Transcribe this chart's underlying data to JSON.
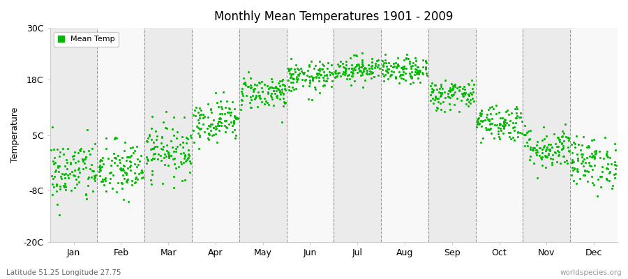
{
  "title": "Monthly Mean Temperatures 1901 - 2009",
  "ylabel": "Temperature",
  "ylim": [
    -20,
    30
  ],
  "yticks": [
    -20,
    -8,
    5,
    18,
    30
  ],
  "ytick_labels": [
    "-20C",
    "-8C",
    "5C",
    "18C",
    "30C"
  ],
  "months": [
    "Jan",
    "Feb",
    "Mar",
    "Apr",
    "May",
    "Jun",
    "Jul",
    "Aug",
    "Sep",
    "Oct",
    "Nov",
    "Dec"
  ],
  "dot_color": "#00bb00",
  "background_gray": "#ebebeb",
  "background_white": "#f8f8f8",
  "legend_label": "Mean Temp",
  "footnote_left": "Latitude 51.25 Longitude 27.75",
  "footnote_right": "worldspecies.org",
  "monthly_means": [
    -3.5,
    -3.2,
    1.5,
    8.5,
    15.0,
    18.5,
    20.5,
    20.0,
    14.5,
    8.0,
    2.0,
    -1.5
  ],
  "monthly_stds": [
    3.8,
    3.5,
    3.2,
    2.5,
    2.0,
    1.8,
    1.5,
    1.5,
    1.8,
    2.2,
    2.5,
    3.0
  ],
  "n_years": 109,
  "seed": 42
}
